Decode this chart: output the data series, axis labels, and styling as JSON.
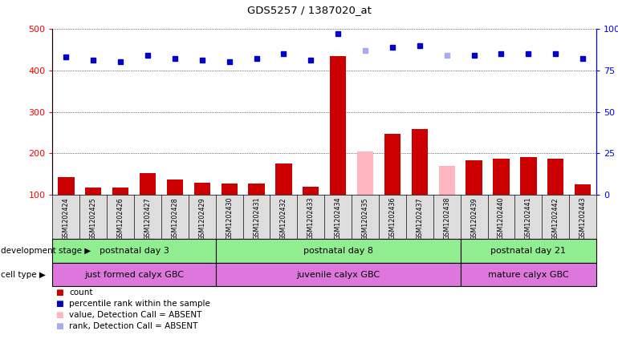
{
  "title": "GDS5257 / 1387020_at",
  "samples": [
    "GSM1202424",
    "GSM1202425",
    "GSM1202426",
    "GSM1202427",
    "GSM1202428",
    "GSM1202429",
    "GSM1202430",
    "GSM1202431",
    "GSM1202432",
    "GSM1202433",
    "GSM1202434",
    "GSM1202435",
    "GSM1202436",
    "GSM1202437",
    "GSM1202438",
    "GSM1202439",
    "GSM1202440",
    "GSM1202441",
    "GSM1202442",
    "GSM1202443"
  ],
  "bar_values": [
    143,
    118,
    118,
    152,
    137,
    130,
    127,
    128,
    175,
    120,
    435,
    205,
    248,
    258,
    170,
    183,
    188,
    192,
    188,
    125
  ],
  "bar_absent": [
    false,
    false,
    false,
    false,
    false,
    false,
    false,
    false,
    false,
    false,
    false,
    true,
    false,
    false,
    true,
    false,
    false,
    false,
    false,
    false
  ],
  "rank_values": [
    83,
    81,
    80,
    84,
    82,
    81,
    80,
    82,
    85,
    81,
    97,
    87,
    89,
    90,
    84,
    84,
    85,
    85,
    85,
    82
  ],
  "rank_absent": [
    false,
    false,
    false,
    false,
    false,
    false,
    false,
    false,
    false,
    false,
    false,
    true,
    false,
    false,
    true,
    false,
    false,
    false,
    false,
    false
  ],
  "ylim_left": [
    100,
    500
  ],
  "ylim_right": [
    0,
    100
  ],
  "yticks_left": [
    100,
    200,
    300,
    400,
    500
  ],
  "yticks_right": [
    0,
    25,
    50,
    75,
    100
  ],
  "bar_color": "#CC0000",
  "bar_absent_color": "#FFB6C1",
  "rank_color": "#0000CC",
  "rank_absent_color": "#AAAAEE",
  "background_color": "#FFFFFF",
  "xtick_bg": "#DDDDDD",
  "dev_stage_color": "#90EE90",
  "cell_type_color": "#DD77DD",
  "groups": [
    {
      "label": "postnatal day 3",
      "start": 0,
      "end": 6
    },
    {
      "label": "postnatal day 8",
      "start": 6,
      "end": 15
    },
    {
      "label": "postnatal day 21",
      "start": 15,
      "end": 20
    }
  ],
  "cell_types": [
    {
      "label": "just formed calyx GBC",
      "start": 0,
      "end": 6
    },
    {
      "label": "juvenile calyx GBC",
      "start": 6,
      "end": 15
    },
    {
      "label": "mature calyx GBC",
      "start": 15,
      "end": 20
    }
  ],
  "dev_stage_label": "development stage",
  "cell_type_label": "cell type",
  "legend_items": [
    {
      "label": "count",
      "color": "#CC0000"
    },
    {
      "label": "percentile rank within the sample",
      "color": "#0000CC"
    },
    {
      "label": "value, Detection Call = ABSENT",
      "color": "#FFB6C1"
    },
    {
      "label": "rank, Detection Call = ABSENT",
      "color": "#AAAAEE"
    }
  ]
}
